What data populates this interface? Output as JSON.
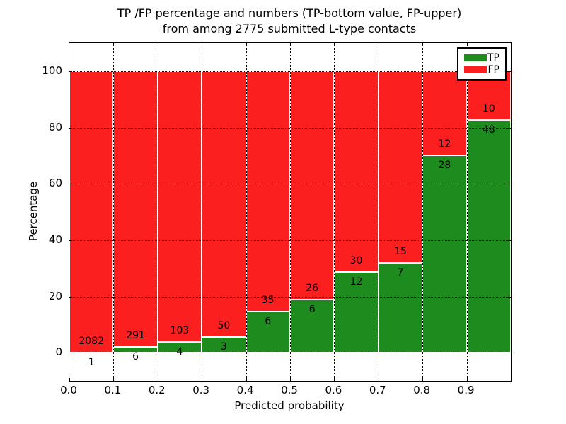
{
  "title": {
    "line1": "TP /FP percentage and numbers (TP-bottom value, FP-upper)",
    "line2": "from among 2775 submitted L-type contacts"
  },
  "axes": {
    "x_label": "Predicted probability",
    "y_label": "Percentage",
    "x_ticks": [
      "0.0",
      "0.1",
      "0.2",
      "0.3",
      "0.4",
      "0.5",
      "0.6",
      "0.7",
      "0.8",
      "0.9"
    ],
    "y_ticks": [
      "0",
      "20",
      "40",
      "60",
      "80",
      "100"
    ]
  },
  "legend": {
    "entries": [
      {
        "label": "TP",
        "color": "#1e8b1e"
      },
      {
        "label": "FP",
        "color": "#fb1f1f"
      }
    ]
  },
  "colors": {
    "tp_green": "#1e8b1e",
    "fp_red": "#fb1f1f",
    "bar_edge": "#ffffff",
    "grid": "#000000"
  },
  "chart_data": {
    "type": "bar",
    "stacked": true,
    "title": "TP /FP percentage and numbers (TP-bottom value, FP-upper) from among 2775 submitted L-type contacts",
    "xlabel": "Predicted probability",
    "ylabel": "Percentage",
    "xlim": [
      0.0,
      1.0
    ],
    "ylim": [
      -10,
      110
    ],
    "grid": true,
    "legend_position": "upper right",
    "bin_width": 0.1,
    "bin_starts": [
      0.0,
      0.1,
      0.2,
      0.3,
      0.4,
      0.5,
      0.6,
      0.7,
      0.8,
      0.9
    ],
    "series": [
      {
        "name": "TP",
        "color": "#1e8b1e",
        "counts": [
          1,
          6,
          4,
          3,
          6,
          6,
          12,
          7,
          28,
          48
        ]
      },
      {
        "name": "FP",
        "color": "#fb1f1f",
        "counts": [
          2082,
          291,
          103,
          50,
          35,
          26,
          30,
          15,
          12,
          10
        ]
      }
    ],
    "total_contacts": 2775,
    "value_encoding": "each bar stacks to 100%; green height = TP/(TP+FP)*100; numeric annotations show raw counts (TP below boundary, FP above boundary)"
  }
}
